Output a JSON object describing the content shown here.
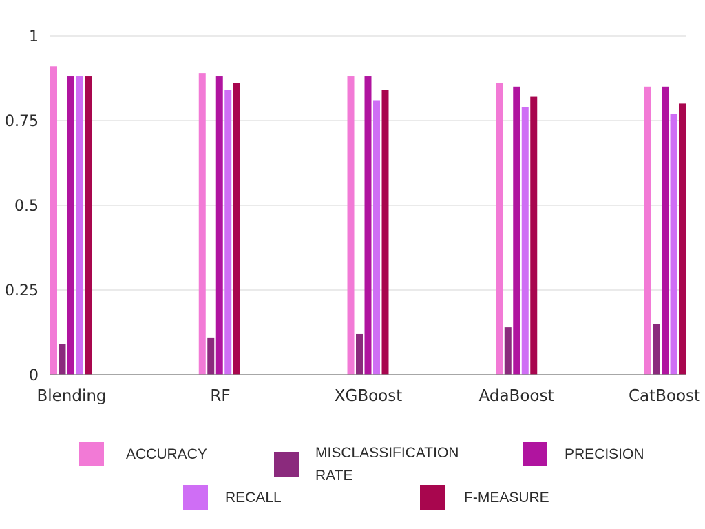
{
  "chart_data": {
    "type": "bar",
    "title": "",
    "xlabel": "",
    "ylabel": "",
    "ylim": [
      0,
      1
    ],
    "yticks": [
      0,
      0.25,
      0.5,
      0.75,
      1
    ],
    "ytick_labels": [
      "0",
      "0.25",
      "0.5",
      "0.75",
      "1"
    ],
    "grid": true,
    "legend_position": "bottom",
    "categories": [
      "Blending",
      "RF",
      "XGBoost",
      "AdaBoost",
      "CatBoost"
    ],
    "series": [
      {
        "name": "ACCURACY",
        "color": "#f27ad6",
        "values": [
          0.91,
          0.89,
          0.88,
          0.86,
          0.85
        ]
      },
      {
        "name": "MISCLASSIFICATION RATE",
        "color": "#8b2a7d",
        "values": [
          0.09,
          0.11,
          0.12,
          0.14,
          0.15
        ]
      },
      {
        "name": "PRECISION",
        "color": "#b0149f",
        "values": [
          0.88,
          0.88,
          0.88,
          0.85,
          0.85
        ]
      },
      {
        "name": "RECALL",
        "color": "#cf6ef5",
        "values": [
          0.88,
          0.84,
          0.81,
          0.79,
          0.77
        ]
      },
      {
        "name": "F-MEASURE",
        "color": "#a8064e",
        "values": [
          0.88,
          0.86,
          0.84,
          0.82,
          0.8
        ]
      }
    ]
  }
}
